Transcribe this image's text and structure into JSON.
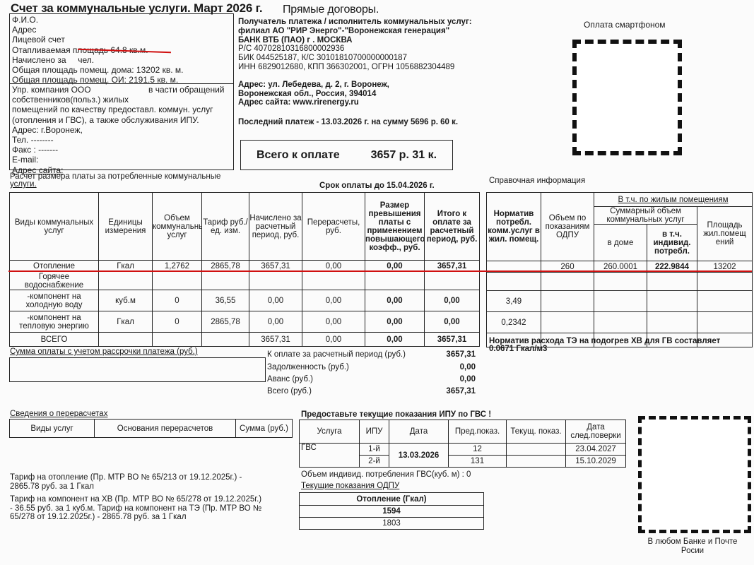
{
  "header": {
    "title": "Счет за коммунальные услуги. Март 2026 г.",
    "subtitle": "Прямые договоры."
  },
  "payer": [
    "Ф.И.О.",
    "Адрес",
    "Лицевой счет",
    "Отапливаемая площадь 64.8 кв.м.",
    "Начислено за     чел.",
    "Общая площадь помещ. дома: 13202 кв. м.",
    "Общая площадь помещ. ОИ:  2191.5 кв. м."
  ],
  "management": {
    "line1a": "Упр. компания ООО",
    "line1b": "в части обращений",
    "lines": [
      "собственников(польз.) жилых",
      "помещений по качеству предоставл. коммун. услуг",
      "(отопления и ГВС), а также обслуживания ИПУ.",
      "Адрес: г.Воронеж,",
      "Тел. --------",
      "Факс : -------",
      "E-mail:",
      "Адрес сайта:"
    ]
  },
  "recipient": {
    "lines": [
      "Получатель платежа / исполнитель коммунальных услуг:",
      "филиал АО \"РИР Энерго\"-\"Воронежская генерация\"",
      "БАНК  ВТБ (ПАО) г . МОСКВА",
      "Р/С 40702810316800002936",
      "БИК  044525187, К/С  30101810700000000187",
      "ИНН  6829012680, КПП  366302001, ОГРН  1056882304489"
    ],
    "address": [
      "Адрес:  ул. Лебедева, д. 2, г. Воронеж,",
      "Воронежская обл., Россия, 394014",
      "Адрес сайта: www.rirenergy.ru"
    ],
    "last_payment": "Последний платеж -  13.03.2026 г. на сумму 5696 р. 60 к."
  },
  "total": {
    "label": "Всего к оплате",
    "amount": "3657 р. 31 к."
  },
  "smartphone": {
    "label": "Оплата смартфоном",
    "icon": "qr-code-icon"
  },
  "calc": {
    "title_line1": "Расчет размера платы за потребленные коммунальные",
    "title_line2": "услуги.",
    "due": "Срок оплаты до 15.04.2026 г.",
    "reference_title": "Справочная информация"
  },
  "main_table": {
    "headers": [
      "Виды коммунальных услуг",
      "Единицы измерения",
      "Объем коммунальных услуг",
      "Тариф руб./ ед. изм.",
      "Начислено за расчетный период, руб.",
      "Перерасчеты, руб.",
      "Размер превышения платы с применением повышающего коэфф., руб.",
      "Итого к оплате за расчетный период, руб."
    ],
    "rows": [
      [
        "Отопление",
        "Гкал",
        "1,2762",
        "2865,78",
        "3657,31",
        "0,00",
        "0,00",
        "3657,31"
      ],
      [
        "Горячее водоснабжение",
        "",
        "",
        "",
        "",
        "",
        "",
        ""
      ],
      [
        "-компонент на холодную воду",
        "куб.м",
        "0",
        "36,55",
        "0,00",
        "0,00",
        "0,00",
        "0,00"
      ],
      [
        "-компонент на тепловую энергию",
        "Гкал",
        "0",
        "2865,78",
        "0,00",
        "0,00",
        "0,00",
        "0,00"
      ],
      [
        "ВСЕГО",
        "",
        "",
        "",
        "3657,31",
        "0,00",
        "0,00",
        "3657,31"
      ]
    ]
  },
  "ref_table": {
    "headers": {
      "norm": "Норматив потребл. комм.услуг в жил. помещ.",
      "odpu": "Объем по показаниям ОДПУ",
      "group": "В т.ч.  по жилым помещениям",
      "sum": "Суммарный объем коммунальных услуг",
      "house": "в доме",
      "indiv": "в т.ч. индивид. потребл.",
      "area": "Площадь жил.помещ ений"
    },
    "rows": [
      [
        "",
        "260",
        "260.0001",
        "222.9844",
        "13202"
      ],
      [
        "",
        "",
        "",
        "",
        ""
      ],
      [
        "3,49",
        "",
        "",
        "",
        ""
      ],
      [
        "0,2342",
        "",
        "",
        "",
        ""
      ],
      [
        "",
        "",
        "",
        "",
        ""
      ]
    ]
  },
  "norm_note": [
    "Норматив расхода ТЭ на подогрев ХВ для ГВ составляет",
    "0.0671 Гкал/м3"
  ],
  "installment": {
    "label": "Сумма оплаты с учетом рассрочки платежа (руб.)"
  },
  "summary": [
    {
      "label": "К оплате за расчетный период (руб.)",
      "value": "3657,31"
    },
    {
      "label": "Задолженность (руб.)",
      "value": "0,00"
    },
    {
      "label": "Аванс (руб.)",
      "value": "0,00"
    },
    {
      "label": "Всего (руб.)",
      "value": "3657,31"
    }
  ],
  "recalc": {
    "title": "Сведения о перерасчетах",
    "headers": [
      "Виды услуг",
      "Основания перерасчетов",
      "Сумма (руб.)"
    ]
  },
  "tariffs": [
    "Тариф на отопление (Пр. МТР ВО № 65/213 от 19.12.2025г.) -",
    "2865.78 руб. за 1 Гкал",
    "Тариф на компонент на ХВ (Пр. МТР ВО № 65/278 от 19.12.2025г.)",
    "- 36.55 руб. за 1 куб.м. Тариф на компонент на ТЭ (Пр. МТР ВО №",
    "65/278 от 19.12.2025г.) - 2865.78 руб. за 1 Гкал"
  ],
  "ipu": {
    "title": "Предоставьте текущие показания ИПУ по ГВС !",
    "headers": [
      "Услуга",
      "ИПУ",
      "Дата",
      "Пред.показ.",
      "Текущ. показ.",
      "Дата след.поверки"
    ],
    "service": "ГВС",
    "date": "13.03.2026",
    "rows": [
      {
        "ipu": "1-й",
        "prev": "12",
        "cur": "",
        "next": "23.04.2027"
      },
      {
        "ipu": "2-й",
        "prev": "131",
        "cur": "",
        "next": "15.10.2029"
      }
    ],
    "volume": "Объем индивид. потребления ГВС(куб. м) :  0"
  },
  "odpu": {
    "title": "Текущие показания ОДПУ",
    "header": "Отопление (Гкал)",
    "values": [
      "1594",
      "1803"
    ]
  },
  "bank_note": [
    "В любом Банке и Почте",
    "Росии"
  ]
}
